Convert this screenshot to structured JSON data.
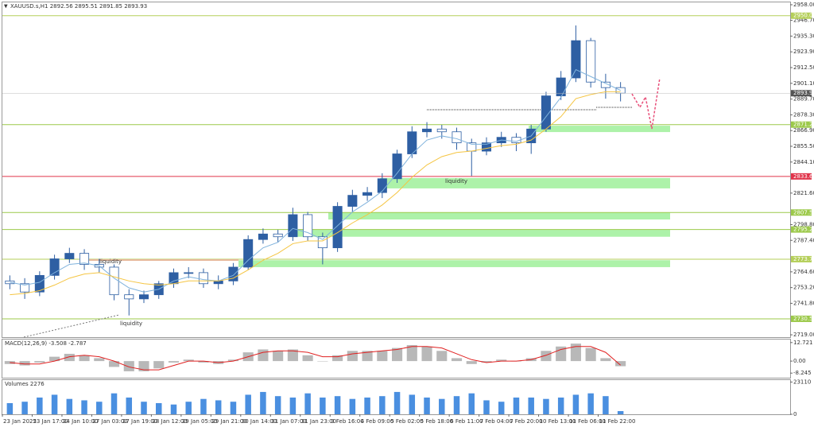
{
  "chart_data": [
    {
      "type": "candlestick",
      "title": "XAUUSD.s,H1  2892.56 2895.51 2891.85 2893.93",
      "categories": [
        "23 Jan 2025",
        null,
        "23 Jan 17:00",
        null,
        "24 Jan 10:00",
        null,
        "27 Jan 03:00",
        null,
        "27 Jan 19:00",
        null,
        "28 Jan 12:00",
        null,
        "29 Jan 05:00",
        null,
        "29 Jan 21:00",
        null,
        "30 Jan 14:00",
        null,
        "31 Jan 07:00",
        null,
        "31 Jan 23:00",
        null,
        "3 Feb 16:00",
        null,
        "4 Feb 09:00",
        null,
        "5 Feb 02:00",
        null,
        "5 Feb 18:00",
        null,
        "6 Feb 11:00",
        null,
        "7 Feb 04:00",
        null,
        "7 Feb 20:00",
        null,
        "10 Feb 13:00",
        null,
        "11 Feb 06:00",
        null,
        "11 Feb 22:00",
        null
      ],
      "open": [
        2758,
        2756,
        2750,
        2762,
        2774,
        2778,
        2770,
        2768,
        2748,
        2745,
        2748,
        2756,
        2764,
        2764,
        2756,
        2758,
        2768,
        2788,
        2792,
        2790,
        2806,
        2790,
        2782,
        2812,
        2820,
        2822,
        2832,
        2850,
        2866,
        2868,
        2866,
        2858,
        2852,
        2858,
        2862,
        2858,
        2868,
        2892,
        2905,
        2932,
        2902,
        2898
      ],
      "high": [
        2762,
        2760,
        2765,
        2777,
        2782,
        2781,
        2774,
        2770,
        2752,
        2751,
        2758,
        2767,
        2768,
        2767,
        2762,
        2771,
        2791,
        2796,
        2795,
        2811,
        2808,
        2793,
        2815,
        2824,
        2826,
        2836,
        2853,
        2870,
        2873,
        2871,
        2869,
        2861,
        2862,
        2866,
        2865,
        2871,
        2895,
        2910,
        2943,
        2934,
        2908,
        2902
      ],
      "low": [
        2752,
        2745,
        2747,
        2759,
        2771,
        2766,
        2764,
        2744,
        2733,
        2742,
        2745,
        2753,
        2760,
        2753,
        2752,
        2755,
        2766,
        2785,
        2786,
        2787,
        2787,
        2770,
        2779,
        2808,
        2816,
        2818,
        2829,
        2847,
        2862,
        2861,
        2853,
        2834,
        2849,
        2855,
        2852,
        2850,
        2866,
        2889,
        2902,
        2898,
        2890,
        2888
      ],
      "close": [
        2756,
        2750,
        2762,
        2774,
        2778,
        2770,
        2768,
        2748,
        2745,
        2748,
        2756,
        2764,
        2764,
        2756,
        2758,
        2768,
        2788,
        2792,
        2790,
        2806,
        2790,
        2782,
        2812,
        2820,
        2822,
        2832,
        2850,
        2866,
        2868,
        2866,
        2858,
        2852,
        2858,
        2862,
        2858,
        2868,
        2892,
        2905,
        2932,
        2902,
        2898,
        2893.93
      ],
      "bull_color": "#2e5fa3",
      "bear_color": "#ffffff",
      "outline_color": "#2e5fa3",
      "ma": [
        {
          "color": "#7fb2dc",
          "values": [
            2757,
            2755,
            2757,
            2764,
            2770,
            2771,
            2769,
            2760,
            2753,
            2750,
            2752,
            2758,
            2761,
            2759,
            2758,
            2762,
            2773,
            2782,
            2786,
            2796,
            2793,
            2788,
            2798,
            2808,
            2815,
            2823,
            2836,
            2850,
            2860,
            2863,
            2861,
            2857,
            2857,
            2860,
            2859,
            2863,
            2877,
            2891,
            2911,
            2906,
            2901,
            2896
          ]
        },
        {
          "color": "#f5c542",
          "values": [
            2748,
            2749,
            2751,
            2755,
            2760,
            2763,
            2764,
            2761,
            2758,
            2756,
            2755,
            2756,
            2758,
            2758,
            2758,
            2760,
            2766,
            2773,
            2778,
            2785,
            2787,
            2787,
            2793,
            2800,
            2806,
            2813,
            2822,
            2833,
            2842,
            2848,
            2851,
            2852,
            2854,
            2856,
            2857,
            2860,
            2868,
            2877,
            2890,
            2893,
            2895,
            2895
          ]
        }
      ],
      "levels": [
        {
          "value": 2950.06,
          "color": "#b5cf5a"
        },
        {
          "value": 2871.21,
          "color": "#9cc94a"
        },
        {
          "value": 2833.69,
          "color": "#e0344a"
        },
        {
          "value": 2807.54,
          "color": "#9cc94a"
        },
        {
          "value": 2795.26,
          "color": "#9cc94a"
        },
        {
          "value": 2773.76,
          "color": "#b5cf5a"
        },
        {
          "value": 2730.57,
          "color": "#9cc94a"
        }
      ],
      "zones": [
        {
          "low": 2865.8,
          "high": 2870.4
        },
        {
          "low": 2825.0,
          "high": 2832.5
        },
        {
          "low": 2802.5,
          "high": 2807.5
        },
        {
          "low": 2790.0,
          "high": 2795.0
        },
        {
          "low": 2768.0,
          "high": 2773.0
        }
      ],
      "zone_color": "#9ff09a",
      "annotations": [
        "liquidity",
        "liquidity",
        "liquidity"
      ],
      "last_price": {
        "value": 2893.93,
        "label": "2893.93"
      },
      "ylim": [
        2717.3,
        2959.7
      ],
      "yticks": [
        {
          "value": 2958,
          "label": "2958.00"
        },
        {
          "value": 2946.7,
          "label": "2946.70"
        },
        {
          "value": 2935.3,
          "label": "2935.30"
        },
        {
          "value": 2923.9,
          "label": "2923.90"
        },
        {
          "value": 2912.5,
          "label": "2912.50"
        },
        {
          "value": 2901.1,
          "label": "2901.10"
        },
        {
          "value": 2889.7,
          "label": "2889.70"
        },
        {
          "value": 2878.3,
          "label": "2878.30"
        },
        {
          "value": 2866.9,
          "label": "2866.90"
        },
        {
          "value": 2855.5,
          "label": "2855.50"
        },
        {
          "value": 2844.1,
          "label": "2844.10"
        },
        {
          "value": 2821.6,
          "label": "2821.60"
        },
        {
          "value": 2798.8,
          "label": "2798.80"
        },
        {
          "value": 2787.4,
          "label": "2787.40"
        },
        {
          "value": 2764.6,
          "label": "2764.60"
        },
        {
          "value": 2753.2,
          "label": "2753.20"
        },
        {
          "value": 2741.8,
          "label": "2741.80"
        },
        {
          "value": 2719,
          "label": "2719.00"
        }
      ]
    },
    {
      "type": "macd",
      "title": "MACD(12,26,9) -3.508 -2.787",
      "values": [
        -2,
        -3,
        -1,
        3,
        5,
        4,
        2,
        -4,
        -7,
        -7,
        -5,
        -1,
        1,
        -1,
        -2,
        1,
        6,
        8,
        7,
        8,
        4,
        0,
        4,
        7,
        7,
        7,
        9,
        11,
        10,
        7,
        2,
        -2,
        -1,
        1,
        0,
        2,
        7,
        10,
        12,
        9,
        2,
        -3.508
      ],
      "color": "#b8b8b8",
      "signal": {
        "color": "#e02020",
        "values": [
          -1,
          -2,
          -2,
          0,
          3,
          4,
          3,
          0,
          -4,
          -6,
          -6,
          -3,
          0,
          0,
          -1,
          0,
          3,
          6,
          7,
          7,
          6,
          3,
          3,
          5,
          6,
          7,
          8,
          10,
          10,
          9,
          5,
          1,
          -1,
          0,
          0,
          1,
          4,
          8,
          10,
          10,
          6,
          -2.787
        ]
      },
      "ylim": [
        -11.4,
        14.8
      ],
      "yticks": [
        12.721,
        {
          "value": 0,
          "label": "0.00"
        },
        -8.245
      ]
    },
    {
      "type": "bar",
      "title": "Volumes 2276",
      "values": [
        8000,
        9000,
        12000,
        14000,
        11000,
        10000,
        9000,
        15000,
        12000,
        9000,
        8000,
        7000,
        9000,
        11000,
        10000,
        9000,
        14000,
        16000,
        13000,
        12000,
        15000,
        12000,
        13000,
        11000,
        12000,
        13000,
        16000,
        14000,
        12000,
        11000,
        13000,
        15000,
        10000,
        9000,
        12000,
        12000,
        11000,
        12000,
        14000,
        15000,
        13000,
        2276
      ],
      "color": "#4a8fe0",
      "ylim": [
        0,
        24500
      ],
      "yticks": [
        23110,
        0
      ]
    }
  ]
}
